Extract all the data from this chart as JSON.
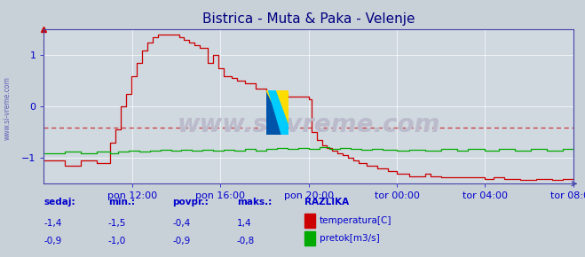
{
  "title": "Bistrica - Muta & Paka - Velenje",
  "title_color": "#000080",
  "title_fontsize": 11,
  "bg_color": "#c8c8d8",
  "plot_bg_color": "#d8d8e8",
  "grid_color": "#ffffff",
  "x_labels": [
    "pon 12:00",
    "pon 16:00",
    "pon 20:00",
    "tor 00:00",
    "tor 04:00",
    "tor 08:00"
  ],
  "x_ticks_norm": [
    0.1667,
    0.3333,
    0.5,
    0.6667,
    0.8333,
    1.0
  ],
  "ylim": [
    -1.5,
    1.5
  ],
  "yticks": [
    -1,
    0,
    1
  ],
  "hline_y": -0.4,
  "hline_color": "#cc0000",
  "axis_color": "#4444aa",
  "tick_color": "#0000cc",
  "tick_fontsize": 8,
  "sidebar_text": "www.si-vreme.com",
  "sidebar_color": "#3333aa",
  "watermark": "www.si-vreme.com",
  "watermark_color": "#bbbbcc",
  "watermark_fontsize": 20,
  "legend_labels": [
    "temperatura[C]",
    "pretok[m3/s]"
  ],
  "legend_colors": [
    "#cc0000",
    "#00aa00"
  ],
  "table_headers": [
    "sedaj:",
    "min.:",
    "povpr.:",
    "maks.:"
  ],
  "table_data": [
    [
      "-1,4",
      "-1,5",
      "-0,4",
      "1,4"
    ],
    [
      "-0,9",
      "-1,0",
      "-0,9",
      "-0,8"
    ]
  ],
  "razlika_label": "RAZLIKA",
  "temp_line_color": "#cc0000",
  "flow_line_color": "#00aa00"
}
